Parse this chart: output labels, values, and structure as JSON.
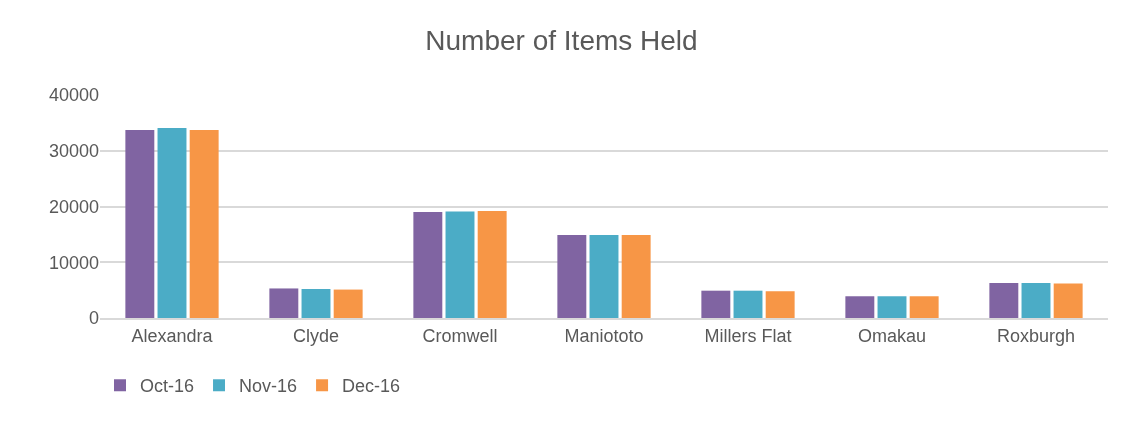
{
  "chart_data": {
    "type": "bar",
    "title": "Number of Items Held",
    "categories": [
      "Alexandra",
      "Clyde",
      "Cromwell",
      "Maniototo",
      "Millers Flat",
      "Omakau",
      "Roxburgh"
    ],
    "series": [
      {
        "name": "Oct-16",
        "color": "#8064a2",
        "values": [
          33700,
          5300,
          19000,
          14900,
          4900,
          3900,
          6300
        ]
      },
      {
        "name": "Nov-16",
        "color": "#4bacc6",
        "values": [
          34100,
          5200,
          19100,
          14900,
          4900,
          3900,
          6300
        ]
      },
      {
        "name": "Dec-16",
        "color": "#f79646",
        "values": [
          33700,
          5100,
          19200,
          14900,
          4800,
          3900,
          6200
        ]
      }
    ],
    "ylim": [
      0,
      40000
    ],
    "yticks": [
      0,
      10000,
      20000,
      30000,
      40000
    ],
    "grid": "y",
    "legend": "bottom left"
  }
}
